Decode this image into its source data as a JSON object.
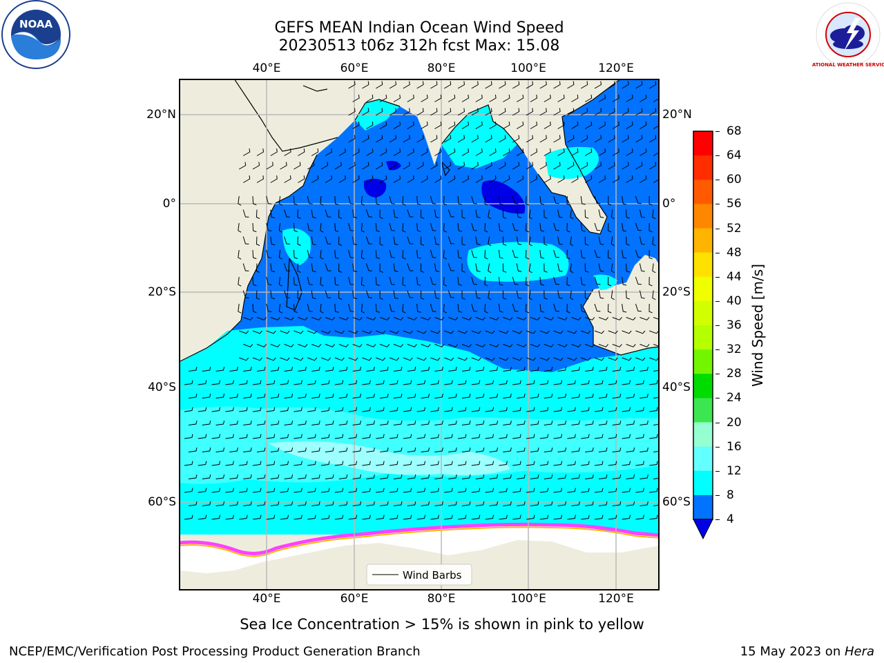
{
  "header": {
    "title_line1": "GEFS MEAN Indian Ocean Wind Speed",
    "title_line2": "20230513 t06z 312h fcst   Max: 15.08"
  },
  "logos": {
    "noaa_text": "NOAA",
    "nws_text": "NATIONAL WEATHER SERVICE"
  },
  "map": {
    "top_lon_labels": [
      "40°E",
      "60°E",
      "80°E",
      "100°E",
      "120°E"
    ],
    "bottom_lon_labels": [
      "40°E",
      "60°E",
      "80°E",
      "100°E",
      "120°E"
    ],
    "left_lat_labels": [
      "20°N",
      "0°",
      "20°S",
      "40°S",
      "60°S"
    ],
    "right_lat_labels": [
      "20°N",
      "0°",
      "20°S",
      "40°S",
      "60°S"
    ],
    "legend_label": "Wind Barbs",
    "colors": {
      "land": "#eeeddd",
      "ice_free_ocean_edge": "#ffffff",
      "band_4_8": "#0173ff",
      "band_0_4": "#0000e6",
      "band_8_12": "#00ffff",
      "band_12_16": "#40ffff",
      "band_16_20": "#9effff",
      "gridline": "#b8b8b8"
    }
  },
  "colorbar": {
    "label": "Wind Speed [m/s]",
    "ticks": [
      "68",
      "64",
      "60",
      "56",
      "52",
      "48",
      "44",
      "40",
      "36",
      "32",
      "28",
      "24",
      "20",
      "16",
      "12",
      "8",
      "4"
    ],
    "segment_colors": [
      "#ff0000",
      "#ff2d00",
      "#ff5a00",
      "#ff8700",
      "#ffb400",
      "#ffe100",
      "#f0ff00",
      "#d2ff00",
      "#b4ff00",
      "#73f500",
      "#00dc00",
      "#3ce650",
      "#96ffd2",
      "#64ffff",
      "#00ffff",
      "#0173ff"
    ],
    "under_color": "#0000e6"
  },
  "caption": "Sea Ice Concentration > 15% is shown in pink to yellow",
  "footer": {
    "left": "NCEP/EMC/Verification Post Processing Product Generation Branch",
    "right_prefix": "15 May 2023 on ",
    "right_host": "Hera"
  }
}
